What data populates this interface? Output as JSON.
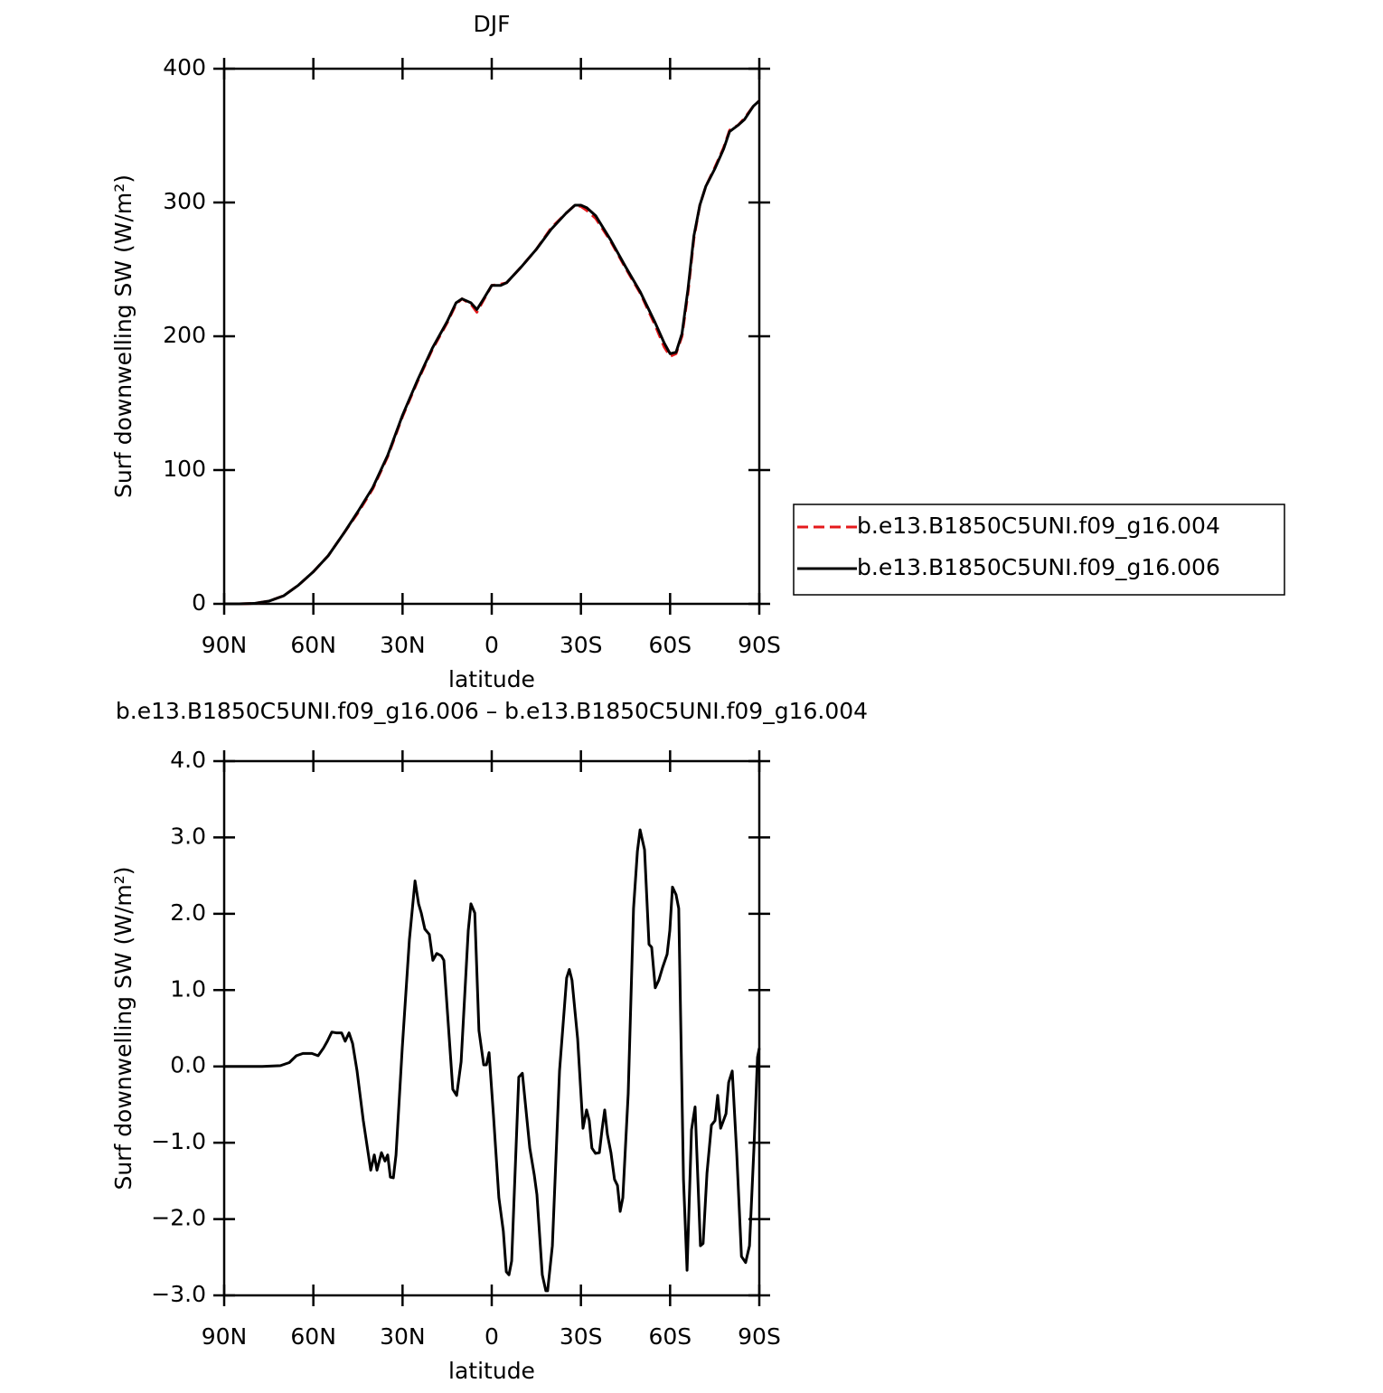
{
  "chart_data": [
    {
      "type": "line",
      "title": "DJF",
      "xlabel": "latitude",
      "ylabel": "Surf downwelling SW (W/m²)",
      "xlim": [
        90,
        -90
      ],
      "xticks": [
        {
          "value": 90,
          "label": "90N"
        },
        {
          "value": 60,
          "label": "60N"
        },
        {
          "value": 30,
          "label": "30N"
        },
        0,
        {
          "value": -30,
          "label": "30S"
        },
        {
          "value": -60,
          "label": "60S"
        },
        {
          "value": -90,
          "label": "90S"
        }
      ],
      "ylim": [
        0,
        400
      ],
      "yticks": [
        0,
        100,
        200,
        300,
        400
      ],
      "legend": "right",
      "x": [
        90,
        85,
        80,
        75,
        70,
        65,
        60,
        55,
        50,
        45,
        40,
        35,
        30,
        25,
        20,
        15,
        12,
        10,
        7,
        5,
        3,
        0,
        -3,
        -5,
        -10,
        -15,
        -20,
        -25,
        -28,
        -30,
        -32,
        -35,
        -40,
        -45,
        -50,
        -55,
        -58,
        -60,
        -62,
        -64,
        -66,
        -68,
        -70,
        -72,
        -75,
        -78,
        -80,
        -83,
        -85,
        -88,
        -90
      ],
      "series": [
        {
          "name": "b.e13.B1850C5UNI.f09_g16.004",
          "color": "#e41a1c",
          "dash": true,
          "values": [
            0,
            0,
            0.3,
            2,
            6,
            14,
            24,
            36,
            52,
            68,
            86,
            110,
            140,
            166,
            190,
            210,
            224,
            228,
            224,
            218,
            226,
            238,
            239,
            240,
            252,
            265,
            281,
            292,
            298,
            297,
            294,
            288,
            271,
            251,
            232,
            208,
            192,
            185,
            187,
            200,
            232,
            273,
            298,
            312,
            326,
            341,
            354,
            358,
            363,
            372,
            376
          ]
        },
        {
          "name": "b.e13.B1850C5UNI.f09_g16.006",
          "color": "#000000",
          "dash": false,
          "values": [
            0,
            0,
            0.3,
            2,
            6,
            14,
            24,
            36,
            52,
            69,
            87,
            111,
            141,
            167,
            191,
            211,
            225,
            228,
            225,
            220,
            227,
            238,
            238,
            240,
            252,
            265,
            280,
            292,
            298,
            298,
            296,
            290,
            272,
            252,
            233,
            210,
            195,
            187,
            188,
            202,
            235,
            275,
            298,
            312,
            325,
            340,
            353,
            358,
            362,
            372,
            376
          ]
        }
      ]
    },
    {
      "type": "line",
      "title": "b.e13.B1850C5UNI.f09_g16.006 – b.e13.B1850C5UNI.f09_g16.004",
      "xlabel": "latitude",
      "ylabel": "Surf downwelling SW (W/m²)",
      "xlim": [
        90,
        -90
      ],
      "xticks": [
        {
          "value": 90,
          "label": "90N"
        },
        {
          "value": 60,
          "label": "60N"
        },
        {
          "value": 30,
          "label": "30N"
        },
        0,
        {
          "value": -30,
          "label": "30S"
        },
        {
          "value": -60,
          "label": "60S"
        },
        {
          "value": -90,
          "label": "90S"
        }
      ],
      "ylim": [
        -3,
        4
      ],
      "yticks": [
        {
          "value": -3,
          "label": "−3.0"
        },
        {
          "value": -2,
          "label": "−2.0"
        },
        {
          "value": -1,
          "label": "−1.0"
        },
        {
          "value": 0,
          "label": "0.0"
        },
        {
          "value": 1,
          "label": "1.0"
        },
        {
          "value": 2,
          "label": "2.0"
        },
        {
          "value": 3,
          "label": "3.0"
        },
        {
          "value": 4,
          "label": "4.0"
        }
      ],
      "color": "#000000",
      "x": [
        90,
        77.2,
        71.1,
        68.1,
        65.7,
        63.5,
        60.5,
        58.4,
        56.6,
        55.3,
        53.8,
        52.3,
        50.5,
        49.3,
        48.0,
        46.8,
        45.3,
        43.2,
        40.7,
        39.5,
        38.6,
        37.1,
        35.9,
        35.0,
        34.1,
        33.1,
        32.2,
        30.1,
        27.7,
        25.8,
        24.6,
        23.7,
        22.5,
        21.0,
        19.8,
        18.5,
        17.0,
        16.1,
        13.1,
        11.8,
        10.3,
        7.9,
        7.0,
        5.7,
        4.3,
        2.7,
        1.8,
        0.9,
        -0.6,
        -2.4,
        -3.9,
        -4.9,
        -5.8,
        -6.7,
        -9.1,
        -10.3,
        -12.8,
        -14.3,
        -15.2,
        -17.0,
        -18.2,
        -18.8,
        -20.4,
        -22.8,
        -25.2,
        -26.1,
        -27.0,
        -28.9,
        -30.7,
        -31.9,
        -32.8,
        -33.7,
        -34.9,
        -36.2,
        -37.1,
        -38.0,
        -38.9,
        -40.1,
        -41.3,
        -42.3,
        -43.2,
        -44.1,
        -45.9,
        -47.7,
        -49.0,
        -49.9,
        -51.4,
        -52.9,
        -53.8,
        -55.0,
        -56.2,
        -57.5,
        -59.0,
        -59.9,
        -60.8,
        -62.0,
        -62.9,
        -64.5,
        -65.7,
        -67.2,
        -68.4,
        -70.2,
        -71.1,
        -72.4,
        -73.9,
        -75.1,
        -76.0,
        -77.0,
        -78.8,
        -79.7,
        -80.9,
        -82.4,
        -84.0,
        -85.4,
        -86.7,
        -88.2,
        -89.4,
        -90
      ],
      "values": [
        0,
        0,
        0.01,
        0.05,
        0.14,
        0.17,
        0.17,
        0.14,
        0.24,
        0.33,
        0.45,
        0.44,
        0.44,
        0.33,
        0.44,
        0.3,
        -0.06,
        -0.71,
        -1.36,
        -1.16,
        -1.36,
        -1.13,
        -1.24,
        -1.16,
        -1.45,
        -1.46,
        -1.16,
        0.24,
        1.66,
        2.43,
        2.13,
        2.01,
        1.8,
        1.73,
        1.39,
        1.48,
        1.45,
        1.39,
        -0.3,
        -0.38,
        0.06,
        1.78,
        2.13,
        2.01,
        0.47,
        0.02,
        0.02,
        0.18,
        -0.65,
        -1.72,
        -2.16,
        -2.69,
        -2.73,
        -2.55,
        -0.14,
        -0.09,
        -1.07,
        -1.42,
        -1.68,
        -2.73,
        -2.94,
        -2.94,
        -2.35,
        -0.06,
        1.16,
        1.27,
        1.13,
        0.36,
        -0.81,
        -0.57,
        -0.71,
        -1.07,
        -1.14,
        -1.13,
        -0.83,
        -0.57,
        -0.89,
        -1.13,
        -1.48,
        -1.56,
        -1.9,
        -1.72,
        -0.36,
        2.07,
        2.82,
        3.1,
        2.84,
        1.6,
        1.56,
        1.03,
        1.13,
        1.3,
        1.47,
        1.78,
        2.35,
        2.25,
        2.07,
        -1.48,
        -2.67,
        -0.83,
        -0.53,
        -2.35,
        -2.32,
        -1.4,
        -0.77,
        -0.71,
        -0.38,
        -0.81,
        -0.62,
        -0.21,
        -0.06,
        -1.13,
        -2.49,
        -2.57,
        -2.35,
        -1.07,
        0.12,
        0.24
      ]
    }
  ]
}
